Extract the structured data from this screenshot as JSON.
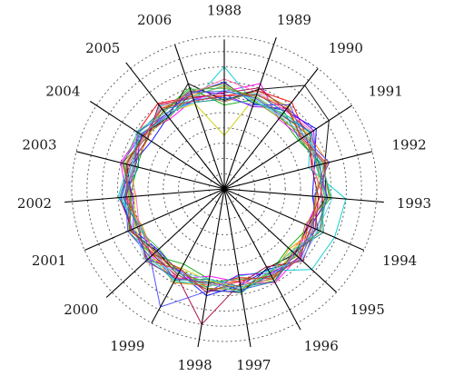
{
  "chart_data": {
    "type": "radar",
    "axes": [
      "1988",
      "1989",
      "1990",
      "1991",
      "1992",
      "1993",
      "1994",
      "1995",
      "1996",
      "1997",
      "1998",
      "1999",
      "2000",
      "2001",
      "2002",
      "2003",
      "2004",
      "2005",
      "2006"
    ],
    "rlim": [
      0,
      10
    ],
    "rings": 10,
    "grid": true,
    "legend": "none",
    "palette": [
      "#ff0000",
      "#00aa00",
      "#0000ff",
      "#ff00ff",
      "#00cccc",
      "#cccc00",
      "#000000",
      "#ff8800",
      "#8800ff",
      "#008888",
      "#888800",
      "#aa0044",
      "#44aa44",
      "#4444ff",
      "#ff66aa",
      "#66ccff",
      "#996633",
      "#33cc99",
      "#cc3333",
      "#3366cc"
    ],
    "series": [
      {
        "values": [
          6.1,
          6.8,
          7.2,
          6.4,
          6.0,
          6.5,
          6.9,
          6.2,
          6.7,
          5.9,
          6.3,
          6.6,
          7.0,
          6.1,
          6.5,
          6.0,
          6.8,
          7.1,
          6.4
        ]
      },
      {
        "values": [
          5.5,
          6.2,
          6.0,
          5.8,
          6.6,
          7.0,
          6.1,
          5.7,
          6.3,
          6.8,
          6.0,
          5.6,
          6.4,
          6.9,
          6.2,
          5.9,
          6.1,
          6.5,
          7.0
        ]
      },
      {
        "values": [
          7.0,
          5.9,
          6.5,
          7.2,
          6.1,
          5.8,
          6.7,
          6.9,
          6.0,
          6.4,
          7.1,
          6.2,
          5.9,
          6.6,
          6.8,
          6.3,
          5.7,
          6.0,
          6.6
        ]
      },
      {
        "values": [
          6.4,
          7.3,
          5.8,
          6.1,
          6.9,
          6.3,
          5.9,
          6.6,
          7.0,
          6.2,
          5.8,
          6.7,
          6.5,
          6.0,
          6.4,
          7.0,
          6.6,
          5.8,
          6.2
        ]
      },
      {
        "values": [
          8.0,
          6.0,
          6.3,
          6.8,
          5.7,
          8.0,
          7.9,
          7.8,
          6.1,
          5.8,
          6.5,
          6.9,
          6.2,
          6.0,
          7.0,
          6.5,
          6.2,
          6.9,
          6.1
        ]
      },
      {
        "values": [
          3.5,
          6.5,
          6.9,
          6.0,
          6.4,
          6.1,
          6.3,
          6.0,
          6.8,
          6.6,
          6.1,
          5.9,
          6.7,
          6.4,
          5.9,
          6.2,
          6.9,
          6.3,
          5.9
        ]
      },
      {
        "values": [
          5.8,
          6.9,
          8.6,
          8.2,
          6.8,
          6.7,
          6.0,
          6.3,
          5.9,
          6.9,
          6.7,
          6.4,
          6.0,
          6.8,
          6.1,
          6.6,
          6.4,
          6.0,
          7.3
        ]
      },
      {
        "values": [
          6.7,
          6.3,
          6.1,
          6.6,
          7.0,
          6.0,
          6.6,
          5.8,
          6.5,
          6.1,
          6.4,
          7.0,
          6.3,
          5.9,
          6.7,
          6.1,
          6.0,
          6.7,
          6.5
        ]
      },
      {
        "values": [
          6.2,
          5.7,
          6.7,
          7.0,
          6.2,
          6.8,
          6.2,
          6.7,
          6.3,
          5.7,
          6.9,
          6.1,
          6.8,
          6.5,
          6.0,
          6.9,
          6.5,
          6.2,
          6.8
        ]
      },
      {
        "values": [
          5.9,
          6.6,
          6.4,
          5.9,
          6.5,
          6.4,
          7.1,
          6.1,
          6.9,
          6.5,
          6.0,
          6.8,
          6.1,
          6.7,
          6.6,
          5.8,
          6.7,
          6.6,
          6.0
        ]
      },
      {
        "values": [
          6.9,
          6.1,
          5.9,
          6.3,
          6.7,
          6.9,
          5.8,
          6.5,
          6.2,
          6.7,
          6.6,
          6.0,
          6.9,
          6.2,
          6.3,
          6.7,
          6.3,
          5.9,
          6.7
        ]
      },
      {
        "values": [
          6.3,
          7.0,
          6.6,
          6.7,
          5.9,
          6.2,
          6.5,
          7.0,
          5.8,
          6.3,
          9.0,
          6.5,
          6.4,
          6.6,
          6.9,
          6.4,
          6.0,
          7.0,
          6.3
        ]
      },
      {
        "values": [
          6.6,
          6.4,
          6.2,
          6.5,
          6.3,
          6.6,
          6.8,
          6.4,
          6.6,
          6.0,
          6.2,
          6.3,
          5.8,
          6.3,
          6.2,
          6.8,
          6.8,
          6.4,
          6.9
        ]
      },
      {
        "values": [
          6.0,
          5.8,
          7.0,
          6.2,
          7.1,
          5.9,
          6.4,
          6.8,
          6.4,
          6.8,
          6.8,
          8.8,
          6.6,
          6.9,
          6.5,
          6.0,
          6.5,
          6.1,
          6.2
        ]
      },
      {
        "values": [
          7.2,
          6.7,
          6.5,
          6.9,
          6.0,
          6.5,
          6.1,
          6.2,
          7.0,
          6.2,
          6.4,
          6.6,
          6.2,
          6.1,
          5.8,
          6.5,
          6.2,
          6.8,
          6.6
        ]
      },
      {
        "values": [
          6.5,
          6.2,
          6.0,
          6.4,
          6.6,
          7.1,
          6.7,
          6.9,
          6.1,
          6.6,
          6.0,
          6.2,
          7.0,
          6.5,
          6.7,
          6.2,
          6.9,
          6.3,
          6.0
        ]
      },
      {
        "values": [
          5.7,
          6.8,
          6.8,
          6.0,
          6.8,
          6.0,
          6.3,
          6.6,
          6.7,
          6.4,
          6.7,
          6.4,
          6.1,
          6.8,
          6.1,
          6.9,
          6.1,
          6.5,
          6.8
        ]
      },
      {
        "values": [
          6.8,
          6.0,
          6.3,
          6.7,
          6.2,
          6.7,
          6.9,
          6.0,
          6.2,
          6.9,
          6.3,
          6.9,
          6.6,
          6.0,
          6.9,
          6.3,
          6.6,
          6.0,
          6.4
        ]
      },
      {
        "values": [
          6.1,
          6.5,
          6.7,
          6.1,
          6.9,
          6.3,
          6.0,
          6.8,
          6.5,
          6.1,
          6.9,
          6.0,
          6.3,
          6.7,
          6.4,
          6.6,
          6.3,
          6.7,
          6.1
        ]
      },
      {
        "values": [
          6.4,
          6.3,
          6.1,
          6.8,
          6.4,
          6.8,
          6.6,
          6.3,
          6.9,
          6.7,
          6.2,
          6.7,
          6.9,
          6.2,
          6.6,
          6.1,
          6.8,
          6.2,
          6.7
        ]
      }
    ]
  }
}
